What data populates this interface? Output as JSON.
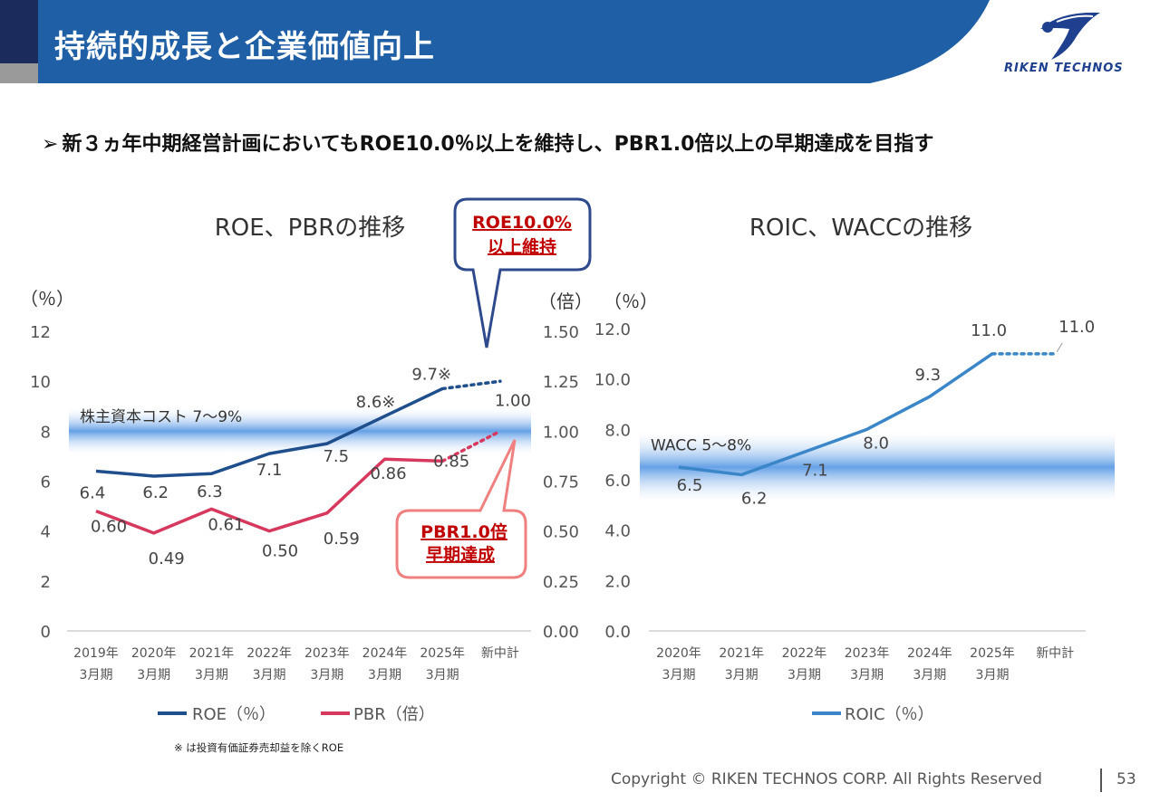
{
  "header": {
    "title": "持続的成長と企業価値向上",
    "logo_text": "RIKEN TECHNOS"
  },
  "headline": {
    "arrow": "➢",
    "text": "新３ヵ年中期経営計画においてもROE10.0％以上を維持し、PBR1.0倍以上の早期達成を目指す"
  },
  "chart_data": [
    {
      "type": "line",
      "title": "ROE、PBRの推移",
      "categories": [
        [
          "2019年",
          "3月期"
        ],
        [
          "2020年",
          "3月期"
        ],
        [
          "2021年",
          "3月期"
        ],
        [
          "2022年",
          "3月期"
        ],
        [
          "2023年",
          "3月期"
        ],
        [
          "2024年",
          "3月期"
        ],
        [
          "2025年",
          "3月期"
        ],
        [
          "新中計"
        ]
      ],
      "left_axis": {
        "unit_label": "（％）",
        "ylim": [
          0,
          12
        ],
        "ticks": [
          "0",
          "2",
          "4",
          "6",
          "8",
          "10",
          "12"
        ]
      },
      "right_axis": {
        "unit_label": "（倍）",
        "ylim": [
          0,
          1.5
        ],
        "ticks": [
          "0.00",
          "0.25",
          "0.50",
          "0.75",
          "1.00",
          "1.25",
          "1.50"
        ]
      },
      "band": {
        "label": "株主資本コスト  7〜9%",
        "from": 7,
        "to": 9,
        "axis": "left"
      },
      "series": [
        {
          "name": "ROE（％）",
          "axis": "left",
          "color": "#1f4e8c",
          "values": [
            6.4,
            6.2,
            6.3,
            7.1,
            7.5,
            8.6,
            9.7,
            10.0
          ],
          "labels": [
            "6.4",
            "6.2",
            "6.3",
            "7.1",
            "7.5",
            "8.6※",
            "9.7※",
            ""
          ],
          "dashed_last_segment": true
        },
        {
          "name": "PBR（倍）",
          "axis": "right",
          "color": "#d7385e",
          "values": [
            0.6,
            0.49,
            0.61,
            0.5,
            0.59,
            0.86,
            0.85,
            1.0
          ],
          "labels": [
            "0.60",
            "0.49",
            "0.61",
            "0.50",
            "0.59",
            "0.86",
            "0.85",
            "1.00"
          ],
          "dashed_last_segment": true
        }
      ],
      "callouts": [
        {
          "lines": [
            "ROE10.0%",
            "以上維持"
          ],
          "color": "#c00000",
          "border": "#2e4a8c"
        },
        {
          "lines": [
            "PBR1.0倍",
            "早期達成"
          ],
          "color": "#c00000",
          "border": "#f08080"
        }
      ],
      "legend_position": "bottom"
    },
    {
      "type": "line",
      "title": "ROIC、WACCの推移",
      "categories": [
        [
          "2020年",
          "3月期"
        ],
        [
          "2021年",
          "3月期"
        ],
        [
          "2022年",
          "3月期"
        ],
        [
          "2023年",
          "3月期"
        ],
        [
          "2024年",
          "3月期"
        ],
        [
          "2025年",
          "3月期"
        ],
        [
          "新中計"
        ]
      ],
      "left_axis": {
        "unit_label": "（％）",
        "ylim": [
          0,
          12
        ],
        "ticks": [
          "0.0",
          "2.0",
          "4.0",
          "6.0",
          "8.0",
          "10.0",
          "12.0"
        ]
      },
      "band": {
        "label": "WACC 5〜8%",
        "from": 5,
        "to": 8,
        "axis": "left"
      },
      "series": [
        {
          "name": "ROIC（％）",
          "axis": "left",
          "color": "#3a86c8",
          "values": [
            6.5,
            6.2,
            7.1,
            8.0,
            9.3,
            11.0,
            11.0
          ],
          "labels": [
            "6.5",
            "6.2",
            "7.1",
            "8.0",
            "9.3",
            "11.0",
            "11.0"
          ],
          "dashed_last_segment": true
        }
      ],
      "legend_position": "bottom"
    }
  ],
  "footnote": "※ は投資有価証券売却益を除くROE",
  "footer": {
    "copyright": "Copyright © RIKEN TECHNOS CORP. All Rights Reserved",
    "page_number": "53"
  },
  "colors": {
    "header_blue": "#1f5fa6",
    "header_dark": "#1a2b5c",
    "band_blue": "#4a90e2"
  }
}
